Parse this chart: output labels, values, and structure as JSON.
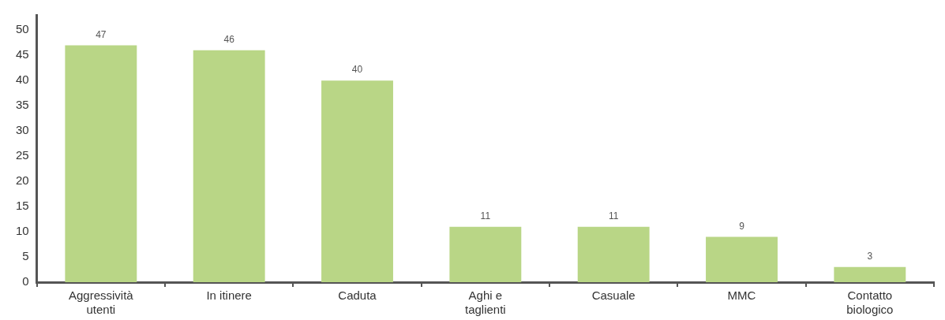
{
  "chart_data": {
    "type": "bar",
    "categories": [
      "Aggressività\nutenti",
      "In itinere",
      "Caduta",
      "Aghi e\ntaglienti",
      "Casuale",
      "MMC",
      "Contatto\nbiologico"
    ],
    "values": [
      47,
      46,
      40,
      11,
      11,
      9,
      3
    ],
    "color": "#b9d686",
    "ylim": [
      0,
      53
    ],
    "yticks": [
      0,
      5,
      10,
      15,
      20,
      25,
      30,
      35,
      40,
      45,
      50
    ],
    "grid": false,
    "data_labels": true
  }
}
